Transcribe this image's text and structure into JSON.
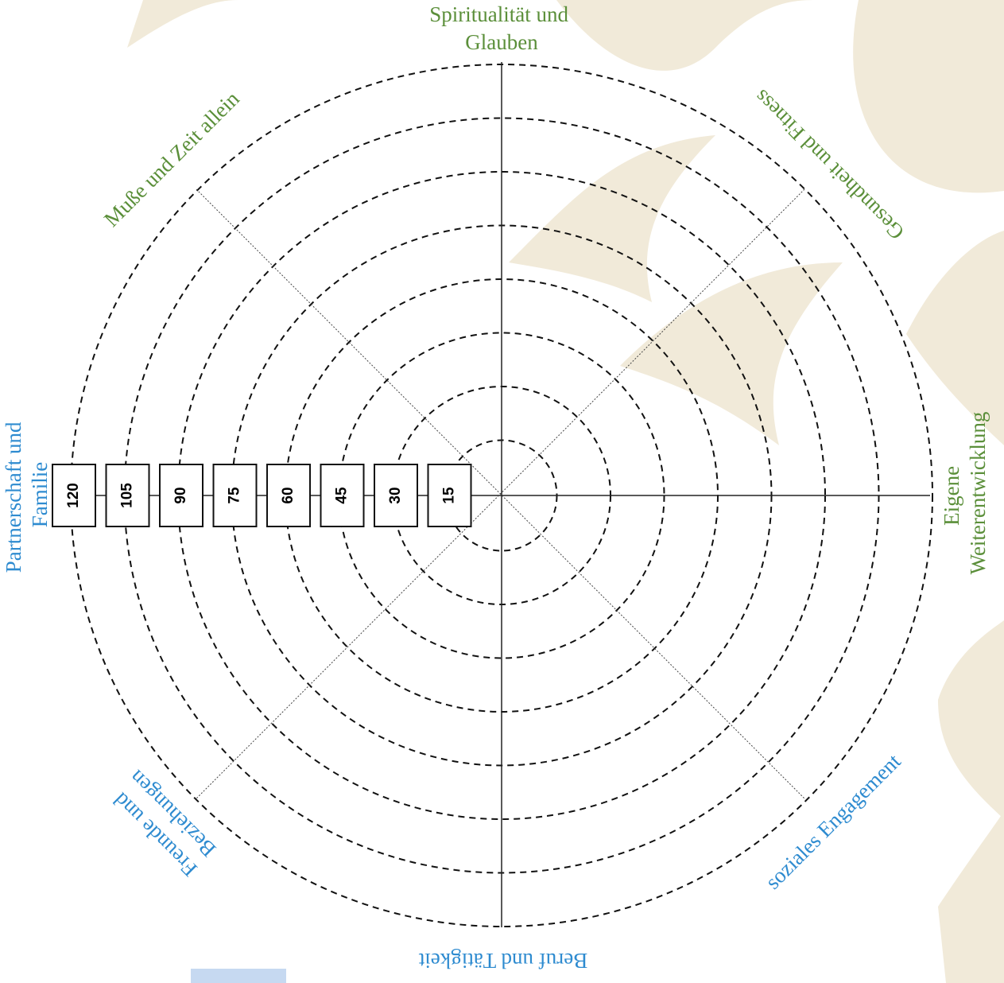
{
  "title": {
    "lines": [
      "Spiritualität und",
      "Glauben"
    ]
  },
  "segments": [
    {
      "lines": [
        "Gesundheit und Fitness"
      ]
    },
    {
      "lines": [
        "Eigene",
        "Weiterentwicklung"
      ]
    },
    {
      "lines": [
        "soziales Engagement"
      ]
    },
    {
      "lines": [
        "Beruf und Tätigkeit"
      ]
    },
    {
      "lines": [
        "Freunde und",
        "Beziehungen"
      ]
    },
    {
      "lines": [
        "Partnerschaft und",
        "Familie"
      ]
    },
    {
      "lines": [
        "Muße und Zeit allein"
      ]
    }
  ],
  "scale": [
    15,
    30,
    45,
    60,
    75,
    90,
    105,
    120
  ]
}
